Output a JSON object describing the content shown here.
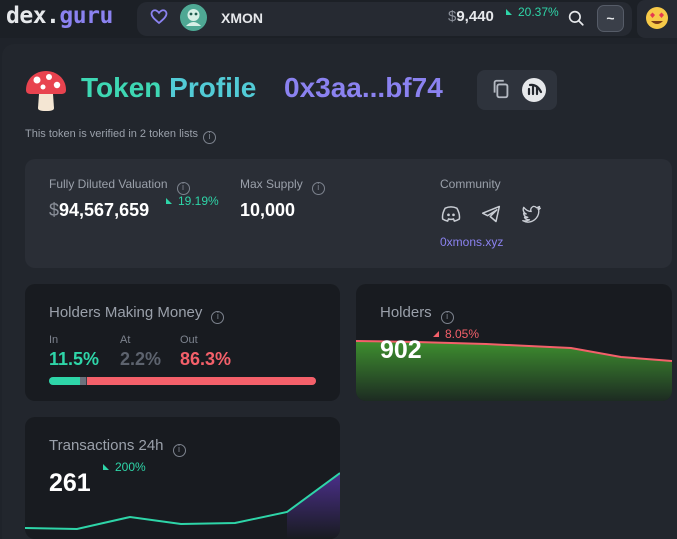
{
  "header": {
    "logo_main": "dex",
    "logo_dot": ".",
    "logo_accent": "guru",
    "token_name": "XMON",
    "price_currency": "$",
    "price": "9,440",
    "price_change": "20.37%",
    "menu_label": "~",
    "icons": [
      "heart-icon",
      "token-avatar",
      "search-icon",
      "user-emoji-icon"
    ]
  },
  "profile": {
    "title_a": "Token",
    "title_b": "Profile",
    "address": "0x3aa...bf74",
    "verified_text": "This token is verified in 2 token lists",
    "info_glyph": "i"
  },
  "stats": {
    "fdv_label": "Fully Diluted Valuation",
    "fdv_currency": "$",
    "fdv_value": "94,567,659",
    "fdv_change": "19.19%",
    "supply_label": "Max Supply",
    "supply_value": "10,000",
    "community_label": "Community",
    "community_link": "0xmons.xyz",
    "social_icons": [
      "discord-icon",
      "telegram-icon",
      "twitter-icon"
    ]
  },
  "holders_money": {
    "title": "Holders Making Money",
    "in_label": "In",
    "in_value": "11.5%",
    "at_label": "At",
    "at_value": "2.2%",
    "out_label": "Out",
    "out_value": "86.3%",
    "bar_fractions": {
      "in": 0.115,
      "at": 0.022,
      "out": 0.863
    },
    "colors": {
      "in": "#2ed5a8",
      "at": "#6b717c",
      "out": "#f4606a"
    }
  },
  "holders": {
    "title": "Holders",
    "value": "902",
    "change": "8.05%"
  },
  "transactions": {
    "title": "Transactions 24h",
    "value": "261",
    "change": "200%"
  }
}
